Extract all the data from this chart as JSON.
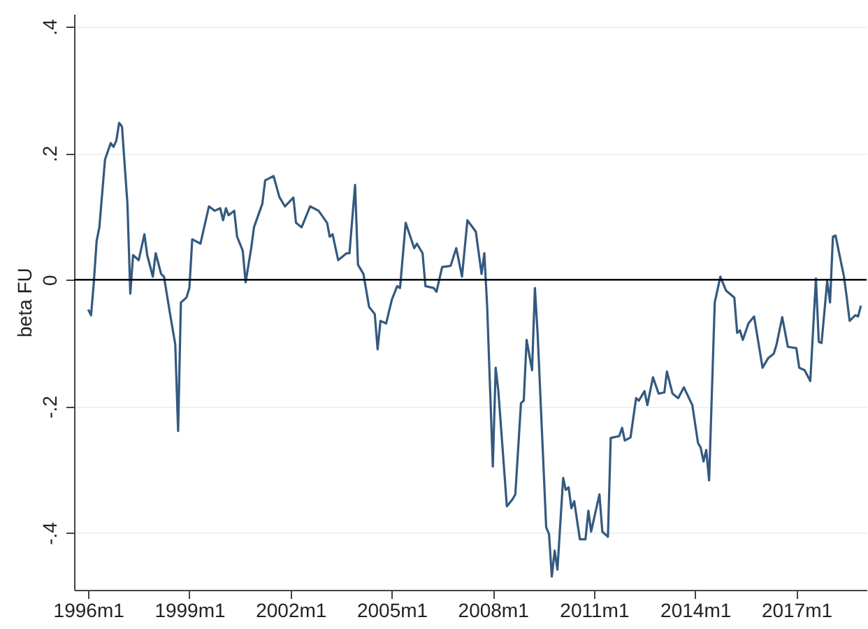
{
  "chart_data": {
    "type": "line",
    "ylabel": "beta FU",
    "x": [
      "1996-01",
      "1996-02",
      "1996-03",
      "1996-04",
      "1996-05",
      "1996-07",
      "1996-09",
      "1996-10",
      "1996-11",
      "1996-12",
      "1997-01",
      "1997-03",
      "1997-04",
      "1997-05",
      "1997-07",
      "1997-09",
      "1997-10",
      "1997-12",
      "1998-01",
      "1998-03",
      "1998-04",
      "1998-06",
      "1998-08",
      "1998-09",
      "1998-10",
      "1998-12",
      "1999-01",
      "1999-02",
      "1999-05",
      "1999-08",
      "1999-10",
      "1999-12",
      "2000-01",
      "2000-02",
      "2000-03",
      "2000-05",
      "2000-06",
      "2000-08",
      "2000-09",
      "2000-11",
      "2000-12",
      "2001-03",
      "2001-04",
      "2001-07",
      "2001-09",
      "2001-11",
      "2002-02",
      "2002-03",
      "2002-05",
      "2002-08",
      "2002-11",
      "2003-02",
      "2003-03",
      "2003-04",
      "2003-06",
      "2003-09",
      "2003-10",
      "2003-12",
      "2004-01",
      "2004-03",
      "2004-05",
      "2004-07",
      "2004-08",
      "2004-09",
      "2004-11",
      "2005-01",
      "2005-03",
      "2005-04",
      "2005-06",
      "2005-09",
      "2005-10",
      "2005-12",
      "2006-01",
      "2006-04",
      "2006-05",
      "2006-07",
      "2006-10",
      "2006-12",
      "2007-02",
      "2007-04",
      "2007-07",
      "2007-09",
      "2007-10",
      "2007-11",
      "2008-01",
      "2008-02",
      "2008-03",
      "2008-06",
      "2008-08",
      "2008-09",
      "2008-11",
      "2008-12",
      "2009-01",
      "2009-03",
      "2009-04",
      "2009-05",
      "2009-08",
      "2009-09",
      "2009-10",
      "2009-11",
      "2009-12",
      "2010-02",
      "2010-03",
      "2010-04",
      "2010-05",
      "2010-06",
      "2010-08",
      "2010-10",
      "2010-11",
      "2010-12",
      "2011-03",
      "2011-04",
      "2011-06",
      "2011-07",
      "2011-10",
      "2011-11",
      "2011-12",
      "2012-02",
      "2012-04",
      "2012-05",
      "2012-07",
      "2012-08",
      "2012-10",
      "2012-12",
      "2013-02",
      "2013-03",
      "2013-05",
      "2013-07",
      "2013-09",
      "2013-12",
      "2014-02",
      "2014-03",
      "2014-04",
      "2014-05",
      "2014-06",
      "2014-08",
      "2014-10",
      "2014-12",
      "2015-03",
      "2015-04",
      "2015-05",
      "2015-06",
      "2015-08",
      "2015-10",
      "2016-01",
      "2016-03",
      "2016-05",
      "2016-06",
      "2016-08",
      "2016-10",
      "2017-01",
      "2017-02",
      "2017-04",
      "2017-06",
      "2017-08",
      "2017-09",
      "2017-10",
      "2017-12",
      "2018-01",
      "2018-02",
      "2018-03",
      "2018-06",
      "2018-07",
      "2018-08",
      "2018-10",
      "2018-11",
      "2018-12"
    ],
    "series": [
      {
        "color": "#34597f",
        "values": [
          -0.047,
          -0.056,
          -0.006,
          0.061,
          0.083,
          0.19,
          0.216,
          0.21,
          0.22,
          0.248,
          0.242,
          0.12,
          -0.022,
          0.039,
          0.031,
          0.072,
          0.039,
          0.005,
          0.042,
          0.009,
          0.005,
          -0.05,
          -0.102,
          -0.239,
          -0.036,
          -0.028,
          -0.013,
          0.064,
          0.057,
          0.116,
          0.109,
          0.113,
          0.094,
          0.113,
          0.102,
          0.109,
          0.068,
          0.046,
          -0.004,
          0.05,
          0.083,
          0.12,
          0.157,
          0.164,
          0.131,
          0.116,
          0.13,
          0.09,
          0.083,
          0.116,
          0.109,
          0.09,
          0.068,
          0.072,
          0.031,
          0.042,
          0.042,
          0.15,
          0.024,
          0.009,
          -0.043,
          -0.054,
          -0.11,
          -0.065,
          -0.069,
          -0.032,
          -0.01,
          -0.013,
          0.09,
          0.05,
          0.057,
          0.042,
          -0.01,
          -0.013,
          -0.019,
          0.02,
          0.022,
          0.05,
          0.005,
          0.094,
          0.076,
          0.009,
          0.042,
          -0.043,
          -0.295,
          -0.139,
          -0.176,
          -0.358,
          -0.347,
          -0.339,
          -0.195,
          -0.191,
          -0.095,
          -0.143,
          -0.013,
          -0.087,
          -0.391,
          -0.402,
          -0.469,
          -0.428,
          -0.458,
          -0.313,
          -0.332,
          -0.328,
          -0.361,
          -0.35,
          -0.41,
          -0.41,
          -0.365,
          -0.398,
          -0.339,
          -0.398,
          -0.406,
          -0.25,
          -0.247,
          -0.234,
          -0.254,
          -0.249,
          -0.187,
          -0.191,
          -0.176,
          -0.198,
          -0.154,
          -0.18,
          -0.178,
          -0.145,
          -0.18,
          -0.187,
          -0.17,
          -0.198,
          -0.258,
          -0.265,
          -0.287,
          -0.269,
          -0.317,
          -0.036,
          0.005,
          -0.017,
          -0.028,
          -0.084,
          -0.08,
          -0.095,
          -0.069,
          -0.058,
          -0.139,
          -0.124,
          -0.117,
          -0.102,
          -0.059,
          -0.106,
          -0.108,
          -0.139,
          -0.143,
          -0.16,
          0.002,
          -0.098,
          -0.1,
          -0.002,
          -0.036,
          0.068,
          0.07,
          0.005,
          -0.028,
          -0.065,
          -0.056,
          -0.058,
          -0.041
        ]
      }
    ],
    "xlim": [
      "1995-08",
      "2019-02"
    ],
    "ylim": [
      -0.49,
      0.42
    ],
    "xticks": [
      {
        "value": "1996-01",
        "label": "1996m1"
      },
      {
        "value": "1999-01",
        "label": "1999m1"
      },
      {
        "value": "2002-01",
        "label": "2002m1"
      },
      {
        "value": "2005-01",
        "label": "2005m1"
      },
      {
        "value": "2008-01",
        "label": "2008m1"
      },
      {
        "value": "2011-01",
        "label": "2011m1"
      },
      {
        "value": "2014-01",
        "label": "2014m1"
      },
      {
        "value": "2017-01",
        "label": "2017m1"
      }
    ],
    "yticks": [
      {
        "value": -0.4,
        "label": "-.4"
      },
      {
        "value": -0.2,
        "label": "-.2"
      },
      {
        "value": 0,
        "label": "0"
      },
      {
        "value": 0.2,
        "label": ".2"
      },
      {
        "value": 0.4,
        "label": ".4"
      }
    ],
    "ref_lines": [
      {
        "axis": "y",
        "value": 0,
        "color": "#000000"
      }
    ],
    "grid": "y",
    "line_style": "solid",
    "marker": "none"
  }
}
